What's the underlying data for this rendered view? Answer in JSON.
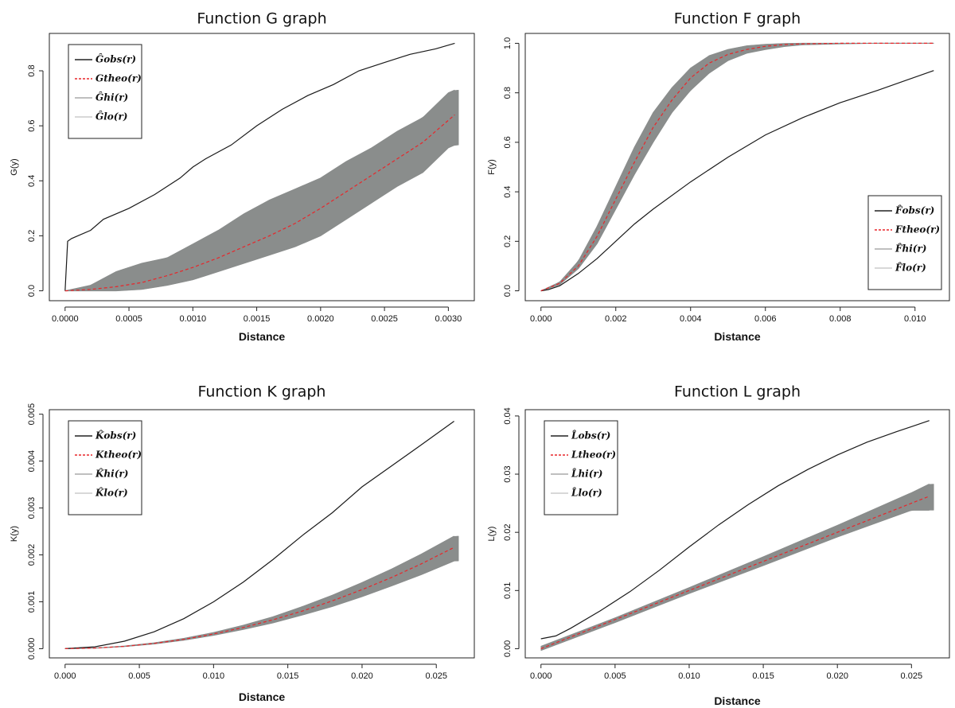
{
  "chart_data": [
    {
      "type": "line",
      "title": "Function G graph",
      "xlabel": "Distance",
      "ylabel": "G(y)",
      "xlim": [
        0,
        0.00308
      ],
      "ylim": [
        0,
        0.9
      ],
      "xticks": [
        0,
        0.0005,
        0.001,
        0.0015,
        0.002,
        0.0025,
        0.003
      ],
      "xtick_labels": [
        "0.0000",
        "0.0005",
        "0.0010",
        "0.0015",
        "0.0020",
        "0.0025",
        "0.0030"
      ],
      "yticks": [
        0,
        0.2,
        0.4,
        0.6,
        0.8
      ],
      "ytick_labels": [
        "0.0",
        "0.2",
        "0.4",
        "0.6",
        "0.8"
      ],
      "legend_position": "top-left",
      "legend": [
        {
          "label": "Ĝobs(r)",
          "color": "#222222",
          "style": "solid"
        },
        {
          "label": "Gtheo(r)",
          "color": "#e8262a",
          "style": "dashed"
        },
        {
          "label": "Ĝhi(r)",
          "color": "#aaaaaa",
          "style": "solid"
        },
        {
          "label": "Ĝlo(r)",
          "color": "#cccccc",
          "style": "solid"
        }
      ],
      "series": [
        {
          "name": "obs",
          "x": [
            0,
            2e-05,
            5e-05,
            0.0001,
            0.0002,
            0.0003,
            0.0005,
            0.0007,
            0.0009,
            0.001,
            0.0011,
            0.0013,
            0.0015,
            0.0017,
            0.0019,
            0.0021,
            0.0023,
            0.0025,
            0.0027,
            0.0029,
            0.00305
          ],
          "y": [
            0,
            0.18,
            0.19,
            0.2,
            0.22,
            0.26,
            0.3,
            0.35,
            0.41,
            0.45,
            0.48,
            0.53,
            0.6,
            0.66,
            0.71,
            0.75,
            0.8,
            0.83,
            0.86,
            0.88,
            0.9
          ]
        },
        {
          "name": "theo",
          "x": [
            0,
            0.0002,
            0.0004,
            0.0006,
            0.0008,
            0.001,
            0.0012,
            0.0014,
            0.0016,
            0.0018,
            0.002,
            0.0022,
            0.0024,
            0.0026,
            0.0028,
            0.00305
          ],
          "y": [
            0,
            0.005,
            0.015,
            0.03,
            0.055,
            0.085,
            0.12,
            0.16,
            0.2,
            0.245,
            0.3,
            0.36,
            0.42,
            0.48,
            0.54,
            0.64
          ]
        },
        {
          "name": "hi",
          "x": [
            0,
            0.0002,
            0.0004,
            0.0006,
            0.0008,
            0.001,
            0.0012,
            0.0014,
            0.0016,
            0.0018,
            0.002,
            0.0022,
            0.0024,
            0.0026,
            0.0028,
            0.003,
            0.00305
          ],
          "y": [
            0,
            0.02,
            0.07,
            0.1,
            0.12,
            0.17,
            0.22,
            0.28,
            0.33,
            0.37,
            0.41,
            0.47,
            0.52,
            0.58,
            0.63,
            0.72,
            0.73
          ]
        },
        {
          "name": "lo",
          "x": [
            0,
            0.0002,
            0.0004,
            0.0006,
            0.0008,
            0.001,
            0.0012,
            0.0014,
            0.0016,
            0.0018,
            0.002,
            0.0022,
            0.0024,
            0.0026,
            0.0028,
            0.003,
            0.00305
          ],
          "y": [
            0,
            0,
            0,
            0.005,
            0.02,
            0.04,
            0.07,
            0.1,
            0.13,
            0.16,
            0.2,
            0.26,
            0.32,
            0.38,
            0.43,
            0.52,
            0.53
          ]
        }
      ]
    },
    {
      "type": "line",
      "title": "Function F graph",
      "xlabel": "Distance",
      "ylabel": "F(y)",
      "xlim": [
        0,
        0.0105
      ],
      "ylim": [
        0,
        1.0
      ],
      "xticks": [
        0,
        0.002,
        0.004,
        0.006,
        0.008,
        0.01
      ],
      "xtick_labels": [
        "0.000",
        "0.002",
        "0.004",
        "0.006",
        "0.008",
        "0.010"
      ],
      "yticks": [
        0,
        0.2,
        0.4,
        0.6,
        0.8,
        1.0
      ],
      "ytick_labels": [
        "0.0",
        "0.2",
        "0.4",
        "0.6",
        "0.8",
        "1.0"
      ],
      "legend_position": "bottom-right",
      "legend": [
        {
          "label": "F̂obs(r)",
          "color": "#222222",
          "style": "solid"
        },
        {
          "label": "Ftheo(r)",
          "color": "#e8262a",
          "style": "dashed"
        },
        {
          "label": "F̂hi(r)",
          "color": "#aaaaaa",
          "style": "solid"
        },
        {
          "label": "F̂lo(r)",
          "color": "#cccccc",
          "style": "solid"
        }
      ],
      "series": [
        {
          "name": "obs",
          "x": [
            0,
            0.0002,
            0.0005,
            0.001,
            0.0015,
            0.002,
            0.0025,
            0.003,
            0.004,
            0.005,
            0.006,
            0.007,
            0.008,
            0.009,
            0.0105
          ],
          "y": [
            0,
            0.005,
            0.02,
            0.07,
            0.13,
            0.2,
            0.27,
            0.33,
            0.44,
            0.54,
            0.63,
            0.7,
            0.76,
            0.81,
            0.89
          ]
        },
        {
          "name": "theo",
          "x": [
            0,
            0.0005,
            0.001,
            0.0015,
            0.002,
            0.0025,
            0.003,
            0.0035,
            0.004,
            0.0045,
            0.005,
            0.0055,
            0.006,
            0.0065,
            0.007,
            0.008,
            0.0105
          ],
          "y": [
            0,
            0.03,
            0.1,
            0.22,
            0.37,
            0.52,
            0.66,
            0.77,
            0.86,
            0.92,
            0.955,
            0.975,
            0.988,
            0.995,
            0.998,
            1.0,
            1.0
          ]
        },
        {
          "name": "hi",
          "x": [
            0,
            0.0005,
            0.001,
            0.0015,
            0.002,
            0.0025,
            0.003,
            0.0035,
            0.004,
            0.0045,
            0.005,
            0.0055,
            0.006,
            0.0065,
            0.007,
            0.008,
            0.0105
          ],
          "y": [
            0,
            0.035,
            0.12,
            0.26,
            0.42,
            0.58,
            0.72,
            0.82,
            0.9,
            0.95,
            0.975,
            0.99,
            0.996,
            0.999,
            1.0,
            1.0,
            1.0
          ]
        },
        {
          "name": "lo",
          "x": [
            0,
            0.0005,
            0.001,
            0.0015,
            0.002,
            0.0025,
            0.003,
            0.0035,
            0.004,
            0.0045,
            0.005,
            0.0055,
            0.006,
            0.0065,
            0.007,
            0.008,
            0.009,
            0.0105
          ],
          "y": [
            0,
            0.025,
            0.09,
            0.19,
            0.33,
            0.47,
            0.6,
            0.72,
            0.81,
            0.88,
            0.93,
            0.96,
            0.975,
            0.987,
            0.994,
            0.998,
            1.0,
            1.0
          ]
        }
      ]
    },
    {
      "type": "line",
      "title": "Function K graph",
      "xlabel": "Distance",
      "ylabel": "K(y)",
      "xlim": [
        0,
        0.0265
      ],
      "ylim": [
        0,
        0.0049
      ],
      "xticks": [
        0,
        0.005,
        0.01,
        0.015,
        0.02,
        0.025
      ],
      "xtick_labels": [
        "0.000",
        "0.005",
        "0.010",
        "0.015",
        "0.020",
        "0.025"
      ],
      "yticks": [
        0,
        0.001,
        0.002,
        0.003,
        0.004,
        0.005
      ],
      "ytick_labels": [
        "0.000",
        "0.001",
        "0.002",
        "0.003",
        "0.004",
        "0.005"
      ],
      "legend_position": "top-left",
      "legend": [
        {
          "label": "K̂obs(r)",
          "color": "#222222",
          "style": "solid"
        },
        {
          "label": "Ktheo(r)",
          "color": "#e8262a",
          "style": "dashed"
        },
        {
          "label": "K̂hi(r)",
          "color": "#aaaaaa",
          "style": "solid"
        },
        {
          "label": "K̂lo(r)",
          "color": "#cccccc",
          "style": "solid"
        }
      ],
      "series": [
        {
          "name": "obs",
          "x": [
            0,
            0.002,
            0.004,
            0.006,
            0.008,
            0.01,
            0.012,
            0.014,
            0.016,
            0.018,
            0.02,
            0.022,
            0.024,
            0.0262
          ],
          "y": [
            0,
            4e-05,
            0.00016,
            0.00036,
            0.00064,
            0.001,
            0.00142,
            0.0019,
            0.00242,
            0.0029,
            0.00345,
            0.0039,
            0.00435,
            0.00485
          ]
        },
        {
          "name": "theo",
          "x": [
            0,
            0.002,
            0.004,
            0.006,
            0.008,
            0.01,
            0.012,
            0.014,
            0.016,
            0.018,
            0.02,
            0.022,
            0.024,
            0.0262
          ],
          "y": [
            0,
            1.26e-05,
            5e-05,
            0.000113,
            0.0002,
            0.000314,
            0.000452,
            0.000616,
            0.000804,
            0.00102,
            0.00126,
            0.00152,
            0.00181,
            0.00216
          ]
        },
        {
          "name": "hi",
          "x": [
            0,
            0.002,
            0.004,
            0.006,
            0.008,
            0.01,
            0.012,
            0.014,
            0.016,
            0.018,
            0.02,
            0.022,
            0.024,
            0.0262
          ],
          "y": [
            0,
            1.4e-05,
            5.6e-05,
            0.000125,
            0.00022,
            0.000345,
            0.0005,
            0.00068,
            0.0009,
            0.00114,
            0.00141,
            0.0017,
            0.00202,
            0.0024
          ]
        },
        {
          "name": "lo",
          "x": [
            0,
            0.002,
            0.004,
            0.006,
            0.008,
            0.01,
            0.012,
            0.014,
            0.016,
            0.018,
            0.02,
            0.022,
            0.024,
            0.0262
          ],
          "y": [
            0,
            1.1e-05,
            4.5e-05,
            0.0001,
            0.00018,
            0.000285,
            0.00041,
            0.00055,
            0.00072,
            0.0009,
            0.00111,
            0.00134,
            0.00158,
            0.00187
          ]
        }
      ]
    },
    {
      "type": "line",
      "title": "Function L graph",
      "xlabel": "Distance",
      "ylabel": "L(y)",
      "xlim": [
        0,
        0.0265
      ],
      "ylim": [
        0,
        0.0395
      ],
      "xticks": [
        0,
        0.005,
        0.01,
        0.015,
        0.02,
        0.025
      ],
      "xtick_labels": [
        "0.000",
        "0.005",
        "0.010",
        "0.015",
        "0.020",
        "0.025"
      ],
      "yticks": [
        0,
        0.01,
        0.02,
        0.03,
        0.04
      ],
      "ytick_labels": [
        "0.00",
        "0.01",
        "0.02",
        "0.03",
        "0.04"
      ],
      "legend_position": "top-left",
      "legend": [
        {
          "label": "L̂obs(r)",
          "color": "#222222",
          "style": "solid"
        },
        {
          "label": "Ltheo(r)",
          "color": "#e8262a",
          "style": "dashed"
        },
        {
          "label": "L̂hi(r)",
          "color": "#aaaaaa",
          "style": "solid"
        },
        {
          "label": "L̂lo(r)",
          "color": "#cccccc",
          "style": "solid"
        }
      ],
      "series": [
        {
          "name": "obs",
          "x": [
            0,
            0.001,
            0.002,
            0.004,
            0.006,
            0.008,
            0.01,
            0.012,
            0.014,
            0.016,
            0.018,
            0.02,
            0.022,
            0.024,
            0.0262
          ],
          "y": [
            0.0017,
            0.0022,
            0.0035,
            0.0065,
            0.0098,
            0.0135,
            0.0175,
            0.0213,
            0.0248,
            0.028,
            0.0308,
            0.0333,
            0.0355,
            0.0373,
            0.0392
          ]
        },
        {
          "name": "theo",
          "x": [
            0,
            0.0262
          ],
          "y": [
            0,
            0.0262
          ]
        },
        {
          "name": "hi",
          "x": [
            0,
            0.005,
            0.01,
            0.015,
            0.02,
            0.025,
            0.0262
          ],
          "y": [
            0.0004,
            0.0053,
            0.0105,
            0.0158,
            0.0212,
            0.0268,
            0.0283
          ]
        },
        {
          "name": "lo",
          "x": [
            0,
            0.005,
            0.01,
            0.015,
            0.02,
            0.025,
            0.0262
          ],
          "y": [
            -0.0003,
            0.0045,
            0.0095,
            0.0143,
            0.0192,
            0.0238,
            0.0238
          ]
        }
      ]
    }
  ]
}
